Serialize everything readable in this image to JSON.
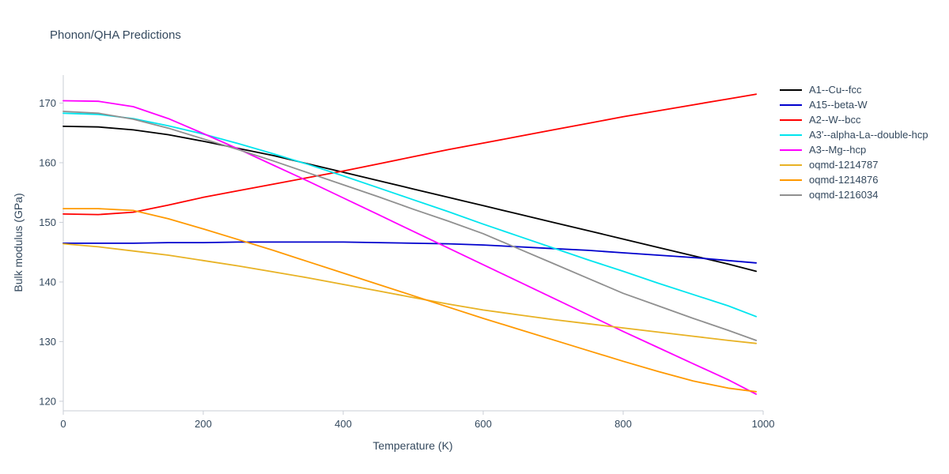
{
  "chart_data": {
    "type": "line",
    "title": "Phonon/QHA Predictions",
    "xlabel": "Temperature (K)",
    "ylabel": "Bulk modulus (GPa)",
    "xlim": [
      0,
      1000
    ],
    "ylim": [
      118.4,
      174.7
    ],
    "x_ticks": [
      0,
      200,
      400,
      600,
      800,
      1000
    ],
    "y_ticks": [
      120,
      130,
      140,
      150,
      160,
      170
    ],
    "grid": false,
    "legend_position": "right",
    "text_color": "#34495e",
    "axis_color": "#c9ced6",
    "x": [
      0,
      50,
      100,
      150,
      200,
      250,
      300,
      350,
      400,
      450,
      500,
      550,
      600,
      650,
      700,
      750,
      800,
      850,
      900,
      950,
      990
    ],
    "series": [
      {
        "name": "A1--Cu--fcc",
        "color": "#000000",
        "values": [
          166.1,
          166.0,
          165.5,
          164.7,
          163.6,
          162.4,
          161.2,
          159.8,
          158.4,
          157.0,
          155.6,
          154.2,
          152.8,
          151.4,
          150.0,
          148.6,
          147.2,
          145.8,
          144.4,
          143.0,
          141.8
        ]
      },
      {
        "name": "A15--beta-W",
        "color": "#0000cd",
        "values": [
          146.5,
          146.5,
          146.5,
          146.6,
          146.6,
          146.7,
          146.7,
          146.7,
          146.7,
          146.6,
          146.5,
          146.4,
          146.2,
          145.9,
          145.6,
          145.3,
          144.9,
          144.5,
          144.1,
          143.6,
          143.2
        ]
      },
      {
        "name": "A2--W--bcc",
        "color": "#ff0000",
        "values": [
          151.4,
          151.3,
          151.7,
          152.9,
          154.2,
          155.3,
          156.4,
          157.5,
          158.6,
          159.8,
          161.0,
          162.2,
          163.3,
          164.4,
          165.5,
          166.6,
          167.7,
          168.7,
          169.7,
          170.7,
          171.5
        ]
      },
      {
        "name": "A3'--alpha-La--double-hcp",
        "color": "#00e5ee",
        "values": [
          168.3,
          168.1,
          167.4,
          166.2,
          164.8,
          163.2,
          161.5,
          159.7,
          157.8,
          155.8,
          153.8,
          151.8,
          149.7,
          147.7,
          145.7,
          143.7,
          141.8,
          139.8,
          137.9,
          136.0,
          134.2
        ]
      },
      {
        "name": "A3--Mg--hcp",
        "color": "#ff00ff",
        "values": [
          170.4,
          170.3,
          169.4,
          167.4,
          164.9,
          162.3,
          159.6,
          156.9,
          154.1,
          151.3,
          148.5,
          145.7,
          142.9,
          140.1,
          137.3,
          134.5,
          131.7,
          129.0,
          126.3,
          123.6,
          121.2
        ]
      },
      {
        "name": "oqmd-1214787",
        "color": "#e8b224",
        "values": [
          146.4,
          145.9,
          145.2,
          144.5,
          143.6,
          142.7,
          141.7,
          140.7,
          139.6,
          138.5,
          137.4,
          136.3,
          135.3,
          134.5,
          133.7,
          133.0,
          132.3,
          131.6,
          130.9,
          130.2,
          129.7
        ]
      },
      {
        "name": "oqmd-1214876",
        "color": "#ff9900",
        "values": [
          152.3,
          152.3,
          152.0,
          150.6,
          148.9,
          147.1,
          145.3,
          143.4,
          141.5,
          139.6,
          137.7,
          135.8,
          133.9,
          132.1,
          130.3,
          128.5,
          126.7,
          125.0,
          123.4,
          122.2,
          121.6
        ]
      },
      {
        "name": "oqmd-1216034",
        "color": "#909090",
        "values": [
          168.6,
          168.3,
          167.3,
          165.8,
          164.0,
          162.2,
          160.3,
          158.3,
          156.3,
          154.3,
          152.2,
          150.2,
          148.1,
          145.6,
          143.1,
          140.6,
          138.1,
          136.0,
          133.9,
          131.9,
          130.2
        ]
      }
    ]
  }
}
